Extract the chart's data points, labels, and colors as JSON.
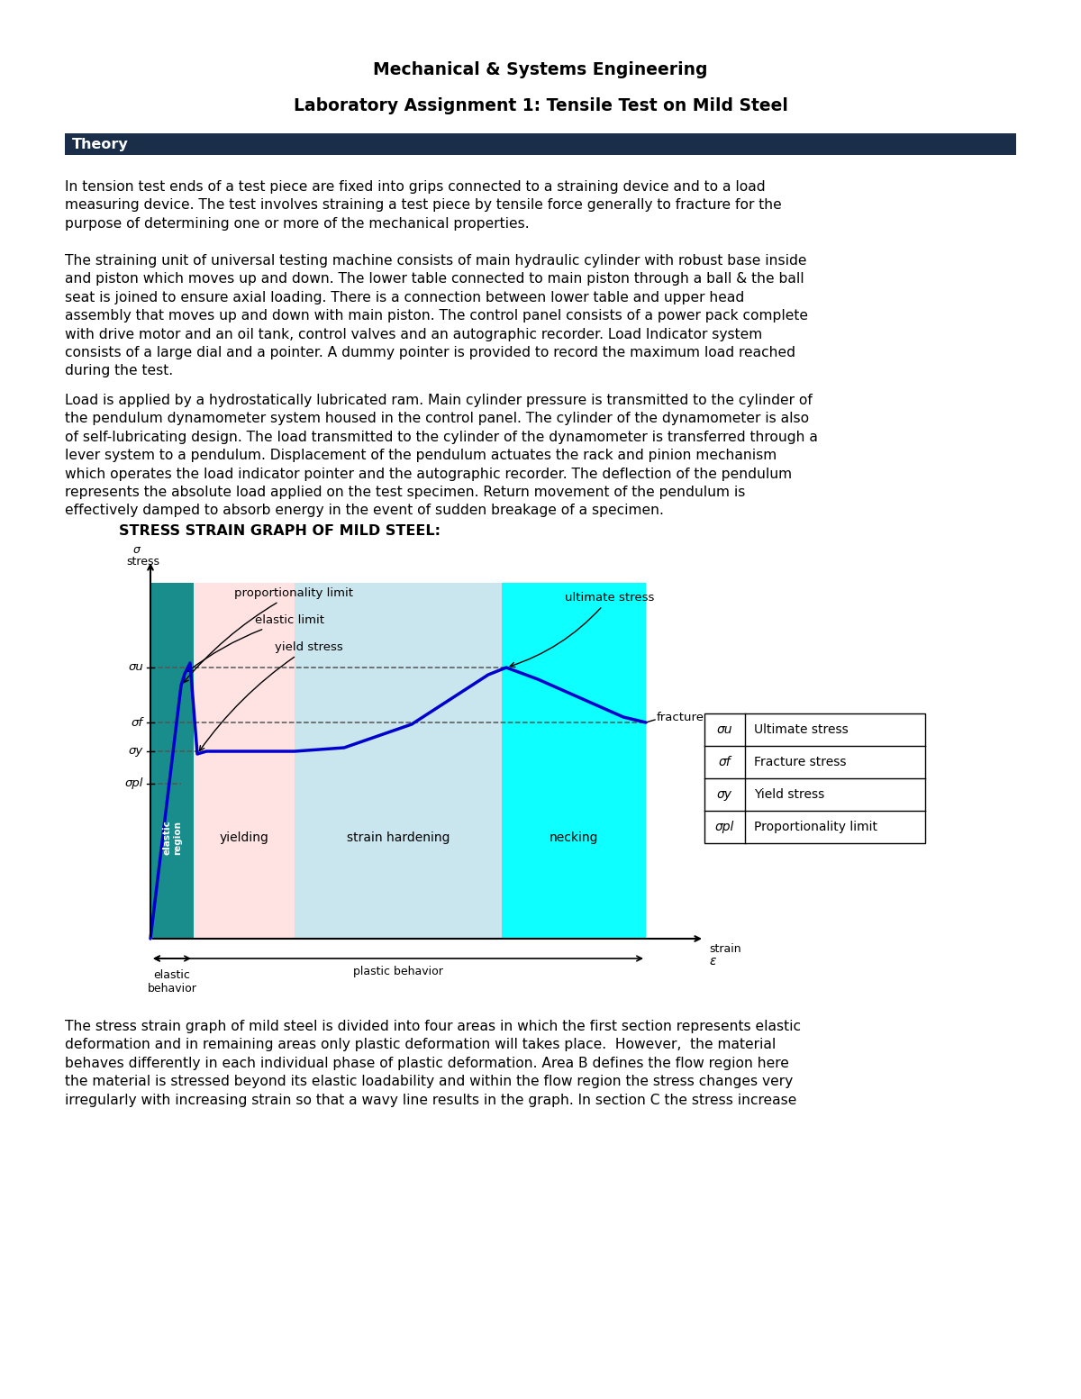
{
  "title1": "Mechanical & Systems Engineering",
  "title2": "Laboratory Assignment 1: Tensile Test on Mild Steel",
  "section_header": "Theory",
  "paragraph1": "In tension test ends of a test piece are fixed into grips connected to a straining device and to a load\nmeasuring device. The test involves straining a test piece by tensile force generally to fracture for the\npurpose of determining one or more of the mechanical properties.",
  "paragraph2": "The straining unit of universal testing machine consists of main hydraulic cylinder with robust base inside\nand piston which moves up and down. The lower table connected to main piston through a ball & the ball\nseat is joined to ensure axial loading. There is a connection between lower table and upper head\nassembly that moves up and down with main piston. The control panel consists of a power pack complete\nwith drive motor and an oil tank, control valves and an autographic recorder. Load Indicator system\nconsists of a large dial and a pointer. A dummy pointer is provided to record the maximum load reached\nduring the test.",
  "paragraph3": "Load is applied by a hydrostatically lubricated ram. Main cylinder pressure is transmitted to the cylinder of\nthe pendulum dynamometer system housed in the control panel. The cylinder of the dynamometer is also\nof self-lubricating design. The load transmitted to the cylinder of the dynamometer is transferred through a\nlever system to a pendulum. Displacement of the pendulum actuates the rack and pinion mechanism\nwhich operates the load indicator pointer and the autographic recorder. The deflection of the pendulum\nrepresents the absolute load applied on the test specimen. Return movement of the pendulum is\neffectively damped to absorb energy in the event of sudden breakage of a specimen.",
  "graph_title": "STRESS STRAIN GRAPH OF MILD STEEL:",
  "paragraph4": "The stress strain graph of mild steel is divided into four areas in which the first section represents elastic\ndeformation and in remaining areas only plastic deformation will takes place.  However,  the material\nbehaves differently in each individual phase of plastic deformation. Area B defines the flow region here\nthe material is stressed beyond its elastic loadability and within the flow region the stress changes very\nirregularly with increasing strain so that a wavy line results in the graph. In section C the stress increase",
  "legend_items": [
    [
      "σu",
      "Ultimate stress"
    ],
    [
      "σf",
      "Fracture stress"
    ],
    [
      "σy",
      "Yield stress"
    ],
    [
      "σpl",
      "Proportionality limit"
    ]
  ],
  "header_bg": "#1a2e4a",
  "elastic_color": "#008080",
  "yield_color": "#ffcccc",
  "sh_color": "#add8e6",
  "neck_color": "#00ffff",
  "curve_color": "#0000cc"
}
